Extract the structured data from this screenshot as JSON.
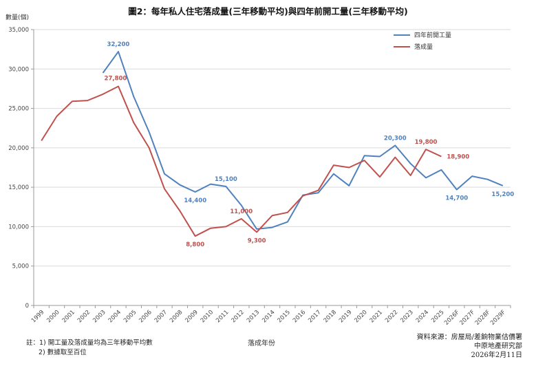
{
  "chart_data": {
    "type": "line",
    "title": "圖2：每年私人住宅落成量(三年移動平均)與四年前開工量(三年移動平均)",
    "ylabel": "數量(個)",
    "xlabel": "落成年份",
    "ylim": [
      0,
      35000
    ],
    "yticks": [
      "0",
      "5,000",
      "10,000",
      "15,000",
      "20,000",
      "25,000",
      "30,000",
      "35,000"
    ],
    "ytick_values": [
      0,
      5000,
      10000,
      15000,
      20000,
      25000,
      30000,
      35000
    ],
    "grid": true,
    "legend_position": "top-right",
    "categories": [
      "1999",
      "2000",
      "2001",
      "2002",
      "2003",
      "2004",
      "2005",
      "2006",
      "2007",
      "2008",
      "2009",
      "2010",
      "2011",
      "2012",
      "2013",
      "2014",
      "2015",
      "2016",
      "2017",
      "2018",
      "2019",
      "2020",
      "2021",
      "2022",
      "2023",
      "2024",
      "2025",
      "2026F",
      "2027F",
      "2028F",
      "2029F"
    ],
    "series": [
      {
        "name": "四年前開工量",
        "color": "#4f81bd",
        "values": [
          null,
          null,
          null,
          null,
          29500,
          32200,
          26500,
          22000,
          16700,
          15300,
          14400,
          15400,
          15100,
          12700,
          9700,
          9900,
          10600,
          14000,
          14300,
          16700,
          15200,
          19000,
          18900,
          20300,
          18000,
          16200,
          17200,
          14700,
          16400,
          16000,
          15200
        ]
      },
      {
        "name": "落成量",
        "color": "#c0504d",
        "values": [
          20900,
          24000,
          25900,
          26000,
          26800,
          27800,
          23200,
          20000,
          14800,
          12000,
          8800,
          9800,
          10000,
          11000,
          9300,
          11400,
          11800,
          13900,
          14600,
          17800,
          17500,
          18400,
          16300,
          18800,
          16500,
          19800,
          18900,
          null,
          null,
          null,
          null
        ]
      }
    ],
    "annotations": [
      {
        "series": 0,
        "x": "2004",
        "text": "32,200",
        "pos": "above"
      },
      {
        "series": 1,
        "x": "2004",
        "text": "27,800",
        "pos": "above-left"
      },
      {
        "series": 0,
        "x": "2009",
        "text": "14,400",
        "pos": "below"
      },
      {
        "series": 1,
        "x": "2009",
        "text": "8,800",
        "pos": "below"
      },
      {
        "series": 0,
        "x": "2011",
        "text": "15,100",
        "pos": "above"
      },
      {
        "series": 1,
        "x": "2012",
        "text": "11,000",
        "pos": "above"
      },
      {
        "series": 1,
        "x": "2013",
        "text": "9,300",
        "pos": "below"
      },
      {
        "series": 0,
        "x": "2022",
        "text": "20,300",
        "pos": "above"
      },
      {
        "series": 1,
        "x": "2024",
        "text": "19,800",
        "pos": "above"
      },
      {
        "series": 1,
        "x": "2025",
        "text": "18,900",
        "pos": "right"
      },
      {
        "series": 0,
        "x": "2026F",
        "text": "14,700",
        "pos": "below"
      },
      {
        "series": 0,
        "x": "2029F",
        "text": "15,200",
        "pos": "below"
      }
    ]
  },
  "notes": {
    "line1": "註：1) 開工量及落成量均為三年移動平均數",
    "line2": "2) 數據取至百位"
  },
  "source": {
    "line1": "資料來源：房屋局/差餉物業估價署",
    "line2": "中原地產研究部",
    "line3": "2026年2月11日"
  }
}
